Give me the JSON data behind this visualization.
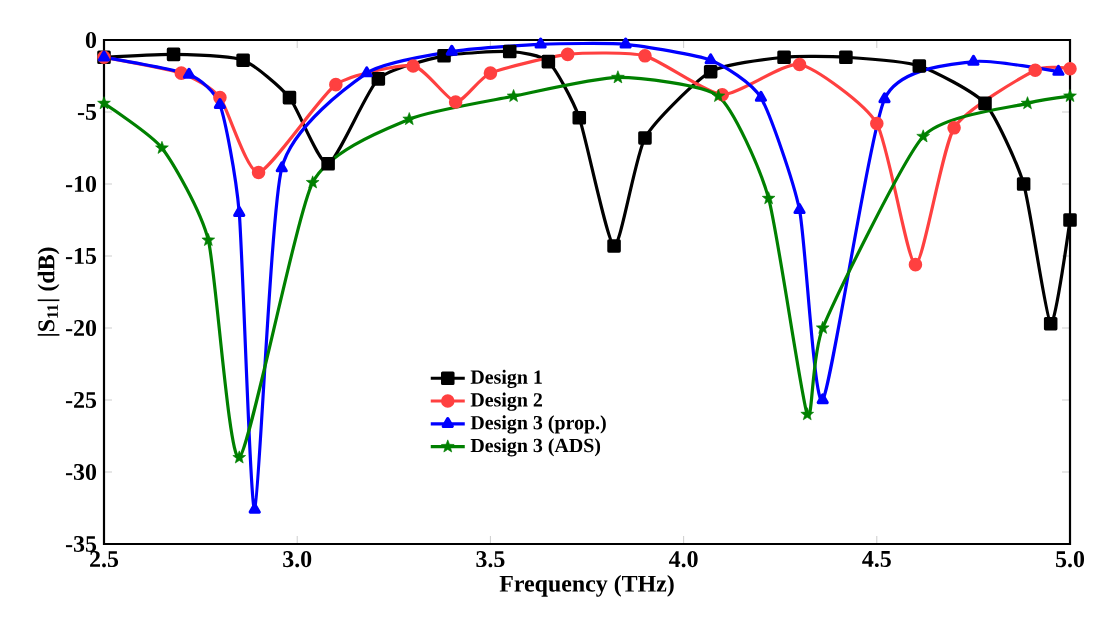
{
  "chart_data": {
    "type": "line",
    "xlabel": "Frequency (THz)",
    "ylabel": "|S$_{11}$| (dB)",
    "xlim": [
      2.5,
      5.0
    ],
    "ylim": [
      -35,
      0
    ],
    "xticks": [
      {
        "value": 2.5,
        "label": "2.5"
      },
      {
        "value": 3.0,
        "label": "3.0"
      },
      {
        "value": 3.5,
        "label": "3.5"
      },
      {
        "value": 4.0,
        "label": "4.0"
      },
      {
        "value": 4.5,
        "label": "4.5"
      },
      {
        "value": 5.0,
        "label": "5.0"
      }
    ],
    "yticks": [
      0,
      -5,
      -10,
      -15,
      -20,
      -25,
      -30,
      -35
    ],
    "grid": false,
    "legend": "bottom",
    "line_style": "solid",
    "series": [
      {
        "name": "Design 1",
        "color": "#000000",
        "marker": "square",
        "x": [
          2.5,
          2.68,
          2.86,
          2.98,
          3.08,
          3.21,
          3.38,
          3.55,
          3.65,
          3.73,
          3.82,
          3.9,
          4.07,
          4.26,
          4.42,
          4.61,
          4.78,
          4.88,
          4.95,
          5.0
        ],
        "values": [
          -1.2,
          -1.0,
          -1.4,
          -4.0,
          -8.6,
          -2.7,
          -1.1,
          -0.8,
          -1.5,
          -5.4,
          -14.3,
          -6.8,
          -2.2,
          -1.2,
          -1.2,
          -1.8,
          -4.4,
          -10.0,
          -19.7,
          -12.5
        ]
      },
      {
        "name": "Design 2",
        "color": "#ff4040",
        "marker": "circle",
        "x": [
          2.5,
          2.7,
          2.8,
          2.9,
          3.1,
          3.3,
          3.41,
          3.5,
          3.7,
          3.9,
          4.1,
          4.3,
          4.5,
          4.6,
          4.7,
          4.91,
          5.0
        ],
        "values": [
          -1.2,
          -2.3,
          -4.0,
          -9.2,
          -3.1,
          -1.8,
          -4.3,
          -2.3,
          -1.0,
          -1.1,
          -3.8,
          -1.7,
          -5.8,
          -15.6,
          -6.1,
          -2.1,
          -2.0
        ]
      },
      {
        "name": "Design 3 (prop.)",
        "color": "#0000ff",
        "marker": "triangle",
        "x": [
          2.5,
          2.72,
          2.8,
          2.85,
          2.89,
          2.96,
          3.18,
          3.4,
          3.63,
          3.85,
          4.07,
          4.2,
          4.3,
          4.36,
          4.52,
          4.75,
          4.97
        ],
        "values": [
          -1.2,
          -2.4,
          -4.5,
          -12.0,
          -32.6,
          -8.9,
          -2.3,
          -0.8,
          -0.3,
          -0.3,
          -1.4,
          -4.0,
          -11.8,
          -25.0,
          -4.1,
          -1.5,
          -2.2
        ]
      },
      {
        "name": "Design 3 (ADS)",
        "color": "#008000",
        "marker": "star",
        "x": [
          2.5,
          2.65,
          2.77,
          2.85,
          3.04,
          3.29,
          3.56,
          3.83,
          4.09,
          4.22,
          4.32,
          4.36,
          4.62,
          4.89,
          5.0
        ],
        "values": [
          -4.4,
          -7.5,
          -13.9,
          -29.0,
          -9.9,
          -5.5,
          -3.9,
          -2.6,
          -3.9,
          -11.0,
          -26.0,
          -20.0,
          -6.7,
          -4.4,
          -3.9
        ]
      }
    ]
  }
}
